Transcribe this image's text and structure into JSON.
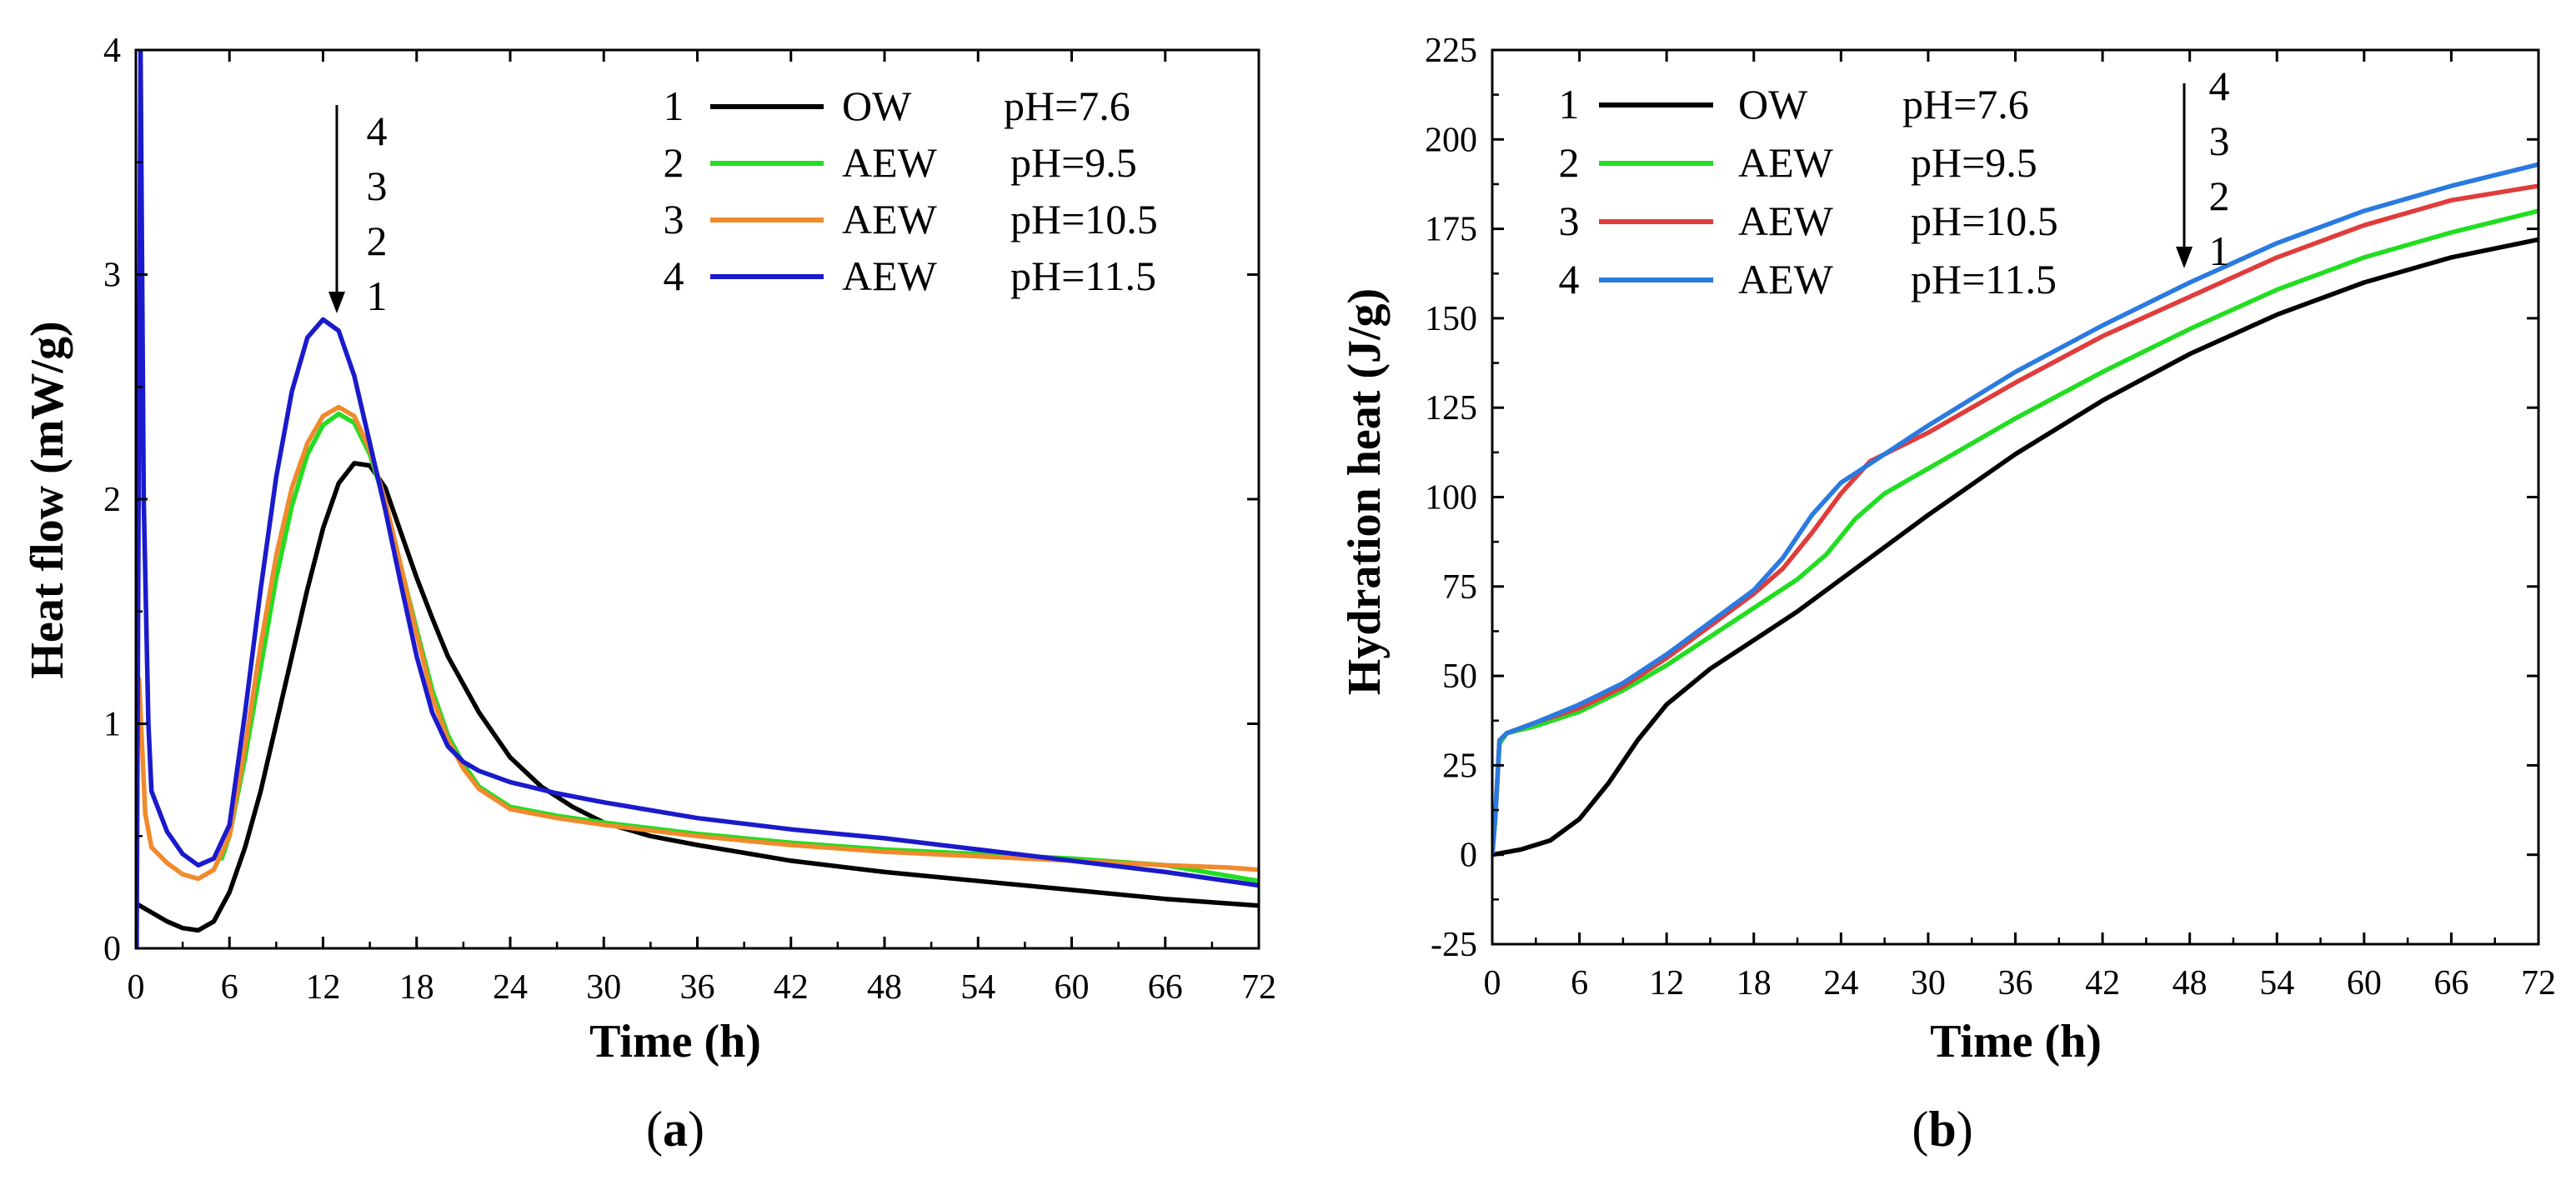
{
  "chart_data": [
    {
      "type": "line",
      "panel_label": {
        "open": "(",
        "letter": "a",
        "close": ")"
      },
      "xlabel": "Time (h)",
      "ylabel": "Heat flow (mW/g)",
      "xlim": [
        0,
        72
      ],
      "ylim": [
        0,
        4
      ],
      "xticks": [
        "0",
        "6",
        "12",
        "18",
        "24",
        "30",
        "36",
        "42",
        "48",
        "54",
        "60",
        "66",
        "72"
      ],
      "yticks": [
        "0",
        "1",
        "2",
        "3",
        "4"
      ],
      "arrow_labels": [
        "4",
        "3",
        "2",
        "1"
      ],
      "series": [
        {
          "num": "1",
          "name": "OW",
          "ph": "pH=7.6",
          "color": "#000000",
          "points": [
            [
              0,
              0.2
            ],
            [
              1,
              0.16
            ],
            [
              2,
              0.12
            ],
            [
              3,
              0.09
            ],
            [
              4,
              0.08
            ],
            [
              5,
              0.12
            ],
            [
              6,
              0.25
            ],
            [
              7,
              0.45
            ],
            [
              8,
              0.7
            ],
            [
              9,
              1.0
            ],
            [
              10,
              1.3
            ],
            [
              11,
              1.6
            ],
            [
              12,
              1.87
            ],
            [
              13,
              2.07
            ],
            [
              14,
              2.16
            ],
            [
              15,
              2.15
            ],
            [
              16,
              2.05
            ],
            [
              17,
              1.85
            ],
            [
              18,
              1.65
            ],
            [
              19,
              1.47
            ],
            [
              20,
              1.3
            ],
            [
              22,
              1.05
            ],
            [
              24,
              0.85
            ],
            [
              26,
              0.72
            ],
            [
              28,
              0.63
            ],
            [
              30,
              0.56
            ],
            [
              33,
              0.5
            ],
            [
              36,
              0.46
            ],
            [
              42,
              0.39
            ],
            [
              48,
              0.34
            ],
            [
              54,
              0.3
            ],
            [
              60,
              0.26
            ],
            [
              66,
              0.22
            ],
            [
              72,
              0.19
            ]
          ]
        },
        {
          "num": "2",
          "name": "AEW",
          "ph": "pH=9.5",
          "color": "#22dd22",
          "points": [
            [
              5.5,
              0.4
            ],
            [
              6,
              0.5
            ],
            [
              7,
              0.85
            ],
            [
              8,
              1.25
            ],
            [
              9,
              1.65
            ],
            [
              10,
              1.97
            ],
            [
              11,
              2.2
            ],
            [
              12,
              2.33
            ],
            [
              13,
              2.38
            ],
            [
              14,
              2.34
            ],
            [
              15,
              2.2
            ],
            [
              16,
              1.98
            ],
            [
              17,
              1.7
            ],
            [
              18,
              1.42
            ],
            [
              19,
              1.15
            ],
            [
              20,
              0.95
            ],
            [
              21,
              0.82
            ],
            [
              22,
              0.72
            ],
            [
              24,
              0.63
            ],
            [
              27,
              0.59
            ],
            [
              30,
              0.56
            ],
            [
              36,
              0.51
            ],
            [
              42,
              0.47
            ],
            [
              48,
              0.44
            ],
            [
              54,
              0.42
            ],
            [
              60,
              0.4
            ],
            [
              66,
              0.37
            ],
            [
              72,
              0.3
            ]
          ]
        },
        {
          "num": "3",
          "name": "AEW",
          "ph": "pH=10.5",
          "color": "#f08a2c",
          "points": [
            [
              0.2,
              1.2
            ],
            [
              0.6,
              0.6
            ],
            [
              1,
              0.45
            ],
            [
              2,
              0.38
            ],
            [
              3,
              0.33
            ],
            [
              4,
              0.31
            ],
            [
              5,
              0.35
            ],
            [
              6,
              0.5
            ],
            [
              7,
              0.9
            ],
            [
              8,
              1.35
            ],
            [
              9,
              1.75
            ],
            [
              10,
              2.05
            ],
            [
              11,
              2.25
            ],
            [
              12,
              2.37
            ],
            [
              13,
              2.41
            ],
            [
              14,
              2.37
            ],
            [
              15,
              2.22
            ],
            [
              16,
              1.99
            ],
            [
              17,
              1.7
            ],
            [
              18,
              1.4
            ],
            [
              19,
              1.12
            ],
            [
              20,
              0.93
            ],
            [
              21,
              0.8
            ],
            [
              22,
              0.71
            ],
            [
              24,
              0.62
            ],
            [
              27,
              0.58
            ],
            [
              30,
              0.55
            ],
            [
              36,
              0.5
            ],
            [
              42,
              0.46
            ],
            [
              48,
              0.43
            ],
            [
              54,
              0.41
            ],
            [
              60,
              0.39
            ],
            [
              66,
              0.37
            ],
            [
              70,
              0.36
            ],
            [
              72,
              0.35
            ]
          ]
        },
        {
          "num": "4",
          "name": "AEW",
          "ph": "pH=11.5",
          "color": "#1a1acc",
          "points": [
            [
              0.05,
              0
            ],
            [
              0.3,
              4
            ],
            [
              0.5,
              2
            ],
            [
              0.8,
              1.0
            ],
            [
              1,
              0.7
            ],
            [
              2,
              0.52
            ],
            [
              3,
              0.42
            ],
            [
              4,
              0.37
            ],
            [
              5,
              0.4
            ],
            [
              6,
              0.55
            ],
            [
              7,
              1.05
            ],
            [
              8,
              1.6
            ],
            [
              9,
              2.1
            ],
            [
              10,
              2.48
            ],
            [
              11,
              2.72
            ],
            [
              12,
              2.8
            ],
            [
              13,
              2.75
            ],
            [
              14,
              2.55
            ],
            [
              15,
              2.25
            ],
            [
              16,
              1.95
            ],
            [
              17,
              1.62
            ],
            [
              18,
              1.3
            ],
            [
              19,
              1.05
            ],
            [
              20,
              0.9
            ],
            [
              21,
              0.83
            ],
            [
              22,
              0.79
            ],
            [
              24,
              0.74
            ],
            [
              27,
              0.69
            ],
            [
              30,
              0.65
            ],
            [
              36,
              0.58
            ],
            [
              42,
              0.53
            ],
            [
              48,
              0.49
            ],
            [
              54,
              0.44
            ],
            [
              60,
              0.39
            ],
            [
              66,
              0.34
            ],
            [
              72,
              0.28
            ]
          ]
        }
      ]
    },
    {
      "type": "line",
      "panel_label": {
        "open": "(",
        "letter": "b",
        "close": ")"
      },
      "xlabel": "Time (h)",
      "ylabel": "Hydration heat (J/g)",
      "xlim": [
        0,
        72
      ],
      "ylim": [
        -25,
        225
      ],
      "xticks": [
        "0",
        "6",
        "12",
        "18",
        "24",
        "30",
        "36",
        "42",
        "48",
        "54",
        "60",
        "66",
        "72"
      ],
      "yticks": [
        "-25",
        "0",
        "25",
        "50",
        "75",
        "100",
        "125",
        "150",
        "175",
        "200",
        "225"
      ],
      "arrow_labels": [
        "4",
        "3",
        "2",
        "1"
      ],
      "series": [
        {
          "num": "1",
          "name": "OW",
          "ph": "pH=7.6",
          "color": "#000000",
          "points": [
            [
              0,
              0
            ],
            [
              2,
              1.5
            ],
            [
              4,
              4
            ],
            [
              6,
              10
            ],
            [
              8,
              20
            ],
            [
              10,
              32
            ],
            [
              12,
              42
            ],
            [
              15,
              52
            ],
            [
              18,
              60
            ],
            [
              21,
              68
            ],
            [
              24,
              77
            ],
            [
              30,
              95
            ],
            [
              36,
              112
            ],
            [
              42,
              127
            ],
            [
              48,
              140
            ],
            [
              54,
              151
            ],
            [
              60,
              160
            ],
            [
              66,
              167
            ],
            [
              72,
              172
            ]
          ]
        },
        {
          "num": "2",
          "name": "AEW",
          "ph": "pH=9.5",
          "color": "#22dd22",
          "points": [
            [
              0,
              0
            ],
            [
              0.2,
              10
            ],
            [
              0.5,
              31
            ],
            [
              1,
              34
            ],
            [
              3,
              36
            ],
            [
              6,
              40
            ],
            [
              9,
              46
            ],
            [
              12,
              53
            ],
            [
              15,
              61
            ],
            [
              18,
              69
            ],
            [
              21,
              77
            ],
            [
              23,
              84
            ],
            [
              25,
              94
            ],
            [
              27,
              101
            ],
            [
              30,
              108
            ],
            [
              36,
              122
            ],
            [
              42,
              135
            ],
            [
              48,
              147
            ],
            [
              54,
              158
            ],
            [
              60,
              167
            ],
            [
              66,
              174
            ],
            [
              72,
              180
            ]
          ]
        },
        {
          "num": "3",
          "name": "AEW",
          "ph": "pH=10.5",
          "color": "#e03c3c",
          "points": [
            [
              0,
              0
            ],
            [
              0.2,
              10
            ],
            [
              0.5,
              32
            ],
            [
              1,
              34
            ],
            [
              3,
              37
            ],
            [
              6,
              41
            ],
            [
              9,
              47
            ],
            [
              12,
              55
            ],
            [
              15,
              64
            ],
            [
              18,
              73
            ],
            [
              20,
              80
            ],
            [
              22,
              90
            ],
            [
              24,
              101
            ],
            [
              26,
              110
            ],
            [
              30,
              118
            ],
            [
              36,
              132
            ],
            [
              42,
              145
            ],
            [
              48,
              156
            ],
            [
              54,
              167
            ],
            [
              60,
              176
            ],
            [
              66,
              183
            ],
            [
              72,
              187
            ]
          ]
        },
        {
          "num": "4",
          "name": "AEW",
          "ph": "pH=11.5",
          "color": "#2a7ae0",
          "points": [
            [
              0,
              0
            ],
            [
              0.2,
              10
            ],
            [
              0.5,
              32
            ],
            [
              1,
              34
            ],
            [
              3,
              37
            ],
            [
              6,
              42
            ],
            [
              9,
              48
            ],
            [
              12,
              56
            ],
            [
              15,
              65
            ],
            [
              18,
              74
            ],
            [
              20,
              83
            ],
            [
              22,
              95
            ],
            [
              24,
              104
            ],
            [
              27,
              112
            ],
            [
              30,
              120
            ],
            [
              36,
              135
            ],
            [
              42,
              148
            ],
            [
              48,
              160
            ],
            [
              54,
              171
            ],
            [
              60,
              180
            ],
            [
              66,
              187
            ],
            [
              72,
              193
            ]
          ]
        }
      ]
    }
  ]
}
